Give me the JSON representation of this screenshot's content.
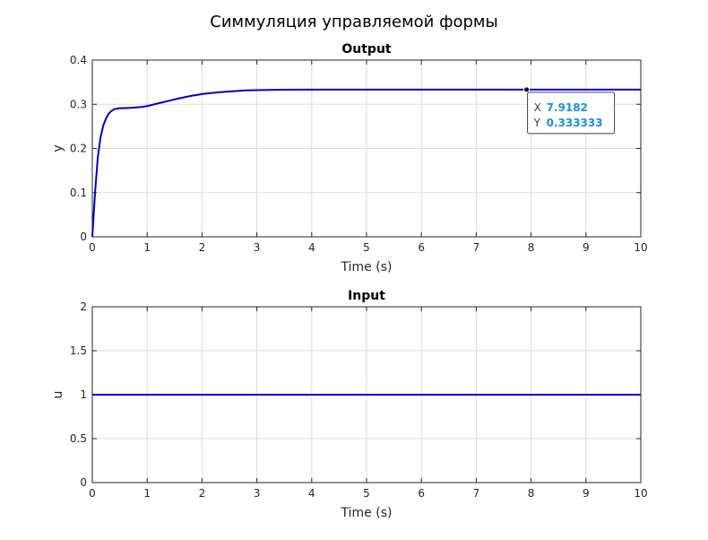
{
  "figure": {
    "title": "Симмуляция управляемой формы"
  },
  "colors": {
    "line": "#0000cc",
    "grid": "#dcdcdc",
    "axis": "#262626",
    "datatip_value": "#1a8fe6"
  },
  "chart_data": [
    {
      "type": "line",
      "title": "Output",
      "xlabel": "Time (s)",
      "ylabel": "y",
      "xlim": [
        0,
        10
      ],
      "ylim": [
        0,
        0.4
      ],
      "xticks": [
        "0",
        "1",
        "2",
        "3",
        "4",
        "5",
        "6",
        "7",
        "8",
        "9",
        "10"
      ],
      "yticks": [
        "0",
        "0.1",
        "0.2",
        "0.3",
        "0.4"
      ],
      "grid": true,
      "series": [
        {
          "x": [
            0,
            0.05,
            0.1,
            0.15,
            0.2,
            0.25,
            0.3,
            0.35,
            0.4,
            0.5,
            0.6,
            0.7,
            0.8,
            0.9,
            1.0,
            1.2,
            1.4,
            1.6,
            1.8,
            2.0,
            2.2,
            2.5,
            2.8,
            3.0,
            3.5,
            4.0,
            5.0,
            6.0,
            7.0,
            8.0,
            9.0,
            10.0
          ],
          "y": [
            0,
            0.1,
            0.18,
            0.225,
            0.252,
            0.268,
            0.279,
            0.285,
            0.289,
            0.291,
            0.2915,
            0.292,
            0.293,
            0.294,
            0.296,
            0.302,
            0.308,
            0.314,
            0.319,
            0.323,
            0.326,
            0.329,
            0.3315,
            0.332,
            0.333,
            0.3333,
            0.3333,
            0.3333,
            0.3333,
            0.3333,
            0.3333,
            0.3333
          ]
        }
      ],
      "datatip": {
        "x_label": "X",
        "x": "7.9182",
        "y_label": "Y",
        "y": "0.333333",
        "px": 7.9182,
        "py": 0.333333
      }
    },
    {
      "type": "line",
      "title": "Input",
      "xlabel": "Time (s)",
      "ylabel": "u",
      "xlim": [
        0,
        10
      ],
      "ylim": [
        0,
        2
      ],
      "xticks": [
        "0",
        "1",
        "2",
        "3",
        "4",
        "5",
        "6",
        "7",
        "8",
        "9",
        "10"
      ],
      "yticks": [
        "0",
        "0.5",
        "1",
        "1.5",
        "2"
      ],
      "grid": true,
      "series": [
        {
          "x": [
            0,
            10
          ],
          "y": [
            1,
            1
          ]
        }
      ]
    }
  ]
}
